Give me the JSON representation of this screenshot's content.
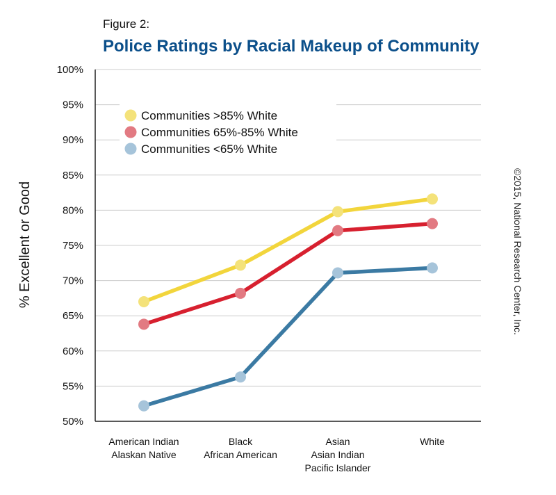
{
  "figure_label": "Figure 2:",
  "credit": "©2015, National Research Center, Inc.",
  "chart_data": {
    "type": "line",
    "title": "Police Ratings by Racial Makeup of Community",
    "xlabel": "",
    "ylabel": "% Excellent or Good",
    "ylim": [
      50,
      100
    ],
    "ytick_step": 5,
    "ytick_suffix": "%",
    "grid": true,
    "legend_position": "top-left",
    "categories": [
      [
        "American Indian",
        "Alaskan Native"
      ],
      [
        "Black",
        "African American"
      ],
      [
        "Asian",
        "Asian Indian",
        "Pacific Islander"
      ],
      [
        "White"
      ]
    ],
    "series": [
      {
        "name": "Communities >85% White",
        "values": [
          67.0,
          72.2,
          79.8,
          81.6
        ],
        "line_color": "#f2d53c",
        "marker_color": "#f4e27a"
      },
      {
        "name": "Communities 65%-85% White",
        "values": [
          63.8,
          68.2,
          77.1,
          78.1
        ],
        "line_color": "#d7202f",
        "marker_color": "#e27a82"
      },
      {
        "name": "Communities <65% White",
        "values": [
          52.2,
          56.3,
          71.1,
          71.8
        ],
        "line_color": "#3b7aa3",
        "marker_color": "#a6c4da"
      }
    ]
  }
}
